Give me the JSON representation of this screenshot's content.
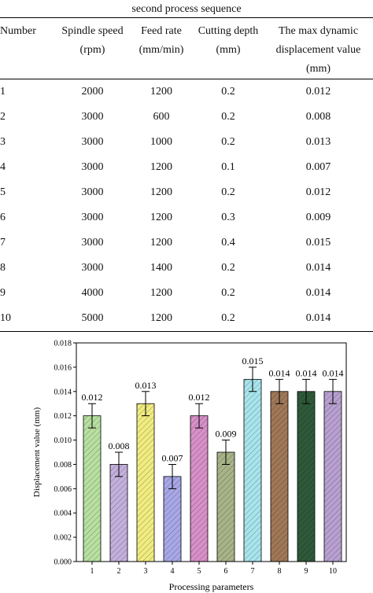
{
  "caption": "second process sequence",
  "table": {
    "header": [
      "Number",
      "Spindle speed (rpm)",
      "Feed rate (mm/min)",
      "Cutting depth (mm)",
      "The max dynamic displacement value (mm)"
    ],
    "rows": [
      [
        "1",
        "2000",
        "1200",
        "0.2",
        "0.012"
      ],
      [
        "2",
        "3000",
        "600",
        "0.2",
        "0.008"
      ],
      [
        "3",
        "3000",
        "1000",
        "0.2",
        "0.013"
      ],
      [
        "4",
        "3000",
        "1200",
        "0.1",
        "0.007"
      ],
      [
        "5",
        "3000",
        "1200",
        "0.2",
        "0.012"
      ],
      [
        "6",
        "3000",
        "1200",
        "0.3",
        "0.009"
      ],
      [
        "7",
        "3000",
        "1200",
        "0.4",
        "0.015"
      ],
      [
        "8",
        "3000",
        "1400",
        "0.2",
        "0.014"
      ],
      [
        "9",
        "4000",
        "1200",
        "0.2",
        "0.014"
      ],
      [
        "10",
        "5000",
        "1200",
        "0.2",
        "0.014"
      ]
    ]
  },
  "chart_data": {
    "type": "bar",
    "categories": [
      "1",
      "2",
      "3",
      "4",
      "5",
      "6",
      "7",
      "8",
      "9",
      "10"
    ],
    "values": [
      0.012,
      0.008,
      0.013,
      0.007,
      0.012,
      0.009,
      0.015,
      0.014,
      0.014,
      0.014
    ],
    "errors": [
      0.001,
      0.001,
      0.001,
      0.001,
      0.001,
      0.001,
      0.001,
      0.001,
      0.001,
      0.001
    ],
    "colors": [
      "#b8e0a0",
      "#c4b0dc",
      "#f0ec80",
      "#a8a8e8",
      "#d890c8",
      "#a8b488",
      "#a8e4ec",
      "#a07858",
      "#2e5a3a",
      "#b8a0d0"
    ],
    "ylim": [
      0,
      0.018
    ],
    "yticks": [
      {
        "value": 0,
        "label": "0.000"
      },
      0.002,
      0.004,
      0.006,
      0.008,
      {
        "value": 0.01,
        "label": "0.010"
      },
      0.012,
      0.014,
      0.016,
      0.018
    ],
    "y_label": "Displacement value (mm)",
    "x_label": "Processing parameters"
  }
}
